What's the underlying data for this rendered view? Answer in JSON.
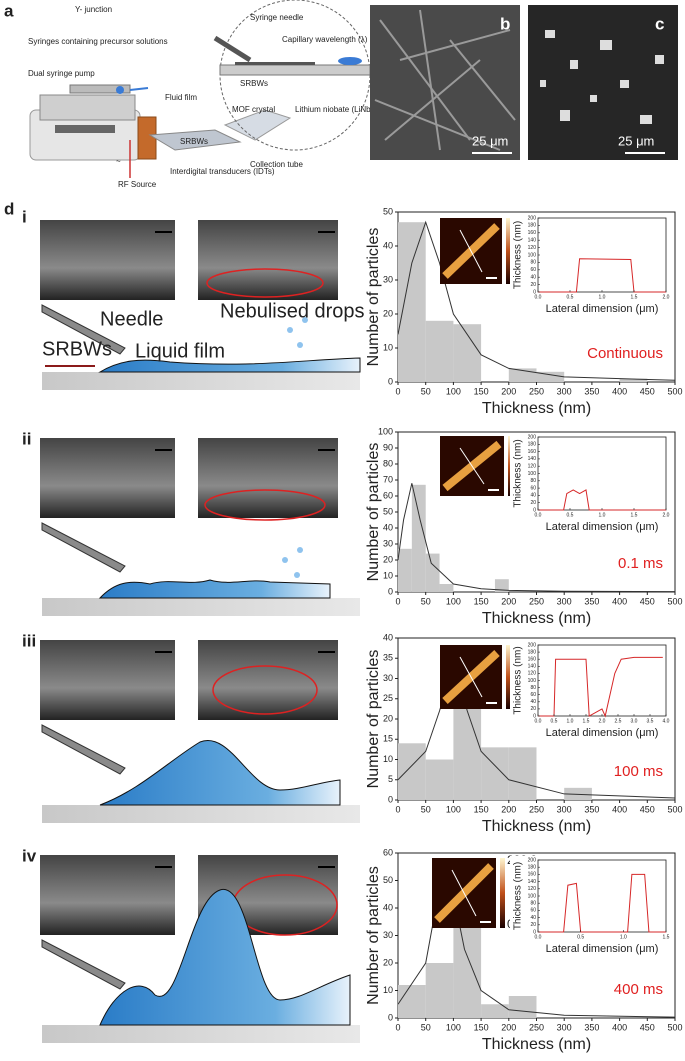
{
  "panel_a": {
    "label": "a",
    "y_junction": "Y- junction",
    "syringes": "Syringes containing precursor solutions",
    "pump": "Dual syringe pump",
    "fluid_film": "Fluid film",
    "rf_source": "RF Source",
    "rf_symbol": "~",
    "srbws": "SRBWs",
    "idts": "Interdigital transducers (IDTs)",
    "collection": "Collection tube",
    "syringe_needle": "Syringe needle",
    "capillary": "Capillary wavelength (λ)",
    "srbws_zoom": "SRBWs",
    "mof": "MOF crystal",
    "substrate": "Lithium niobate (LiNbO3)"
  },
  "panel_b": {
    "label": "b",
    "scale": "25 μm"
  },
  "panel_c": {
    "label": "c",
    "scale": "25 μm"
  },
  "panel_d": {
    "label": "d",
    "rows": [
      {
        "label": "i",
        "needle": "Needle",
        "drops": "Nebulised drops",
        "waves": "SRBWs",
        "film": "Liquid film"
      },
      {
        "label": "ii"
      },
      {
        "label": "iii"
      },
      {
        "label": "iv"
      }
    ]
  },
  "chart_data": [
    {
      "type": "histogram",
      "xlabel": "Thickness (nm)",
      "ylabel": "Number of particles",
      "annotation": "Continuous",
      "colorbar": {
        "max": "100.0",
        "min": "0.0"
      },
      "bins": [
        0,
        50,
        100,
        150,
        200,
        250,
        300,
        350,
        400,
        450,
        500
      ],
      "values": [
        47,
        18,
        17,
        0,
        4,
        3,
        0,
        0,
        1,
        0
      ],
      "color": "#c8c8c8",
      "xlim": [
        0,
        500
      ],
      "ylim": [
        0,
        50
      ],
      "xticks": [
        0,
        50,
        100,
        150,
        200,
        250,
        300,
        350,
        400,
        450,
        500
      ],
      "yticks": [
        0,
        10,
        20,
        30,
        40,
        50
      ],
      "fit": {
        "x": [
          0,
          25,
          50,
          75,
          100,
          150,
          200,
          300,
          500
        ],
        "values": [
          14,
          35,
          47,
          35,
          20,
          8,
          4,
          1.5,
          0.5
        ],
        "color": "#333333"
      }
    },
    {
      "type": "histogram",
      "xlabel": "Thickness (nm)",
      "ylabel": "Number of particles",
      "annotation": "0.1 ms",
      "colorbar": {
        "max": "100.0",
        "min": "0.0"
      },
      "bins": [
        0,
        25,
        50,
        75,
        100,
        125,
        150,
        175,
        200,
        225,
        250,
        275,
        300,
        325,
        350,
        375,
        400,
        425,
        450,
        475,
        500
      ],
      "values": [
        27,
        67,
        24,
        5,
        0,
        0,
        0,
        8,
        0,
        0,
        0,
        0,
        0,
        0,
        0,
        0,
        0,
        0,
        0,
        0
      ],
      "color": "#c8c8c8",
      "xlim": [
        0,
        500
      ],
      "ylim": [
        0,
        100
      ],
      "xticks": [
        0,
        50,
        100,
        150,
        200,
        250,
        300,
        350,
        400,
        450,
        500
      ],
      "yticks": [
        0,
        10,
        20,
        30,
        40,
        50,
        60,
        70,
        80,
        90,
        100
      ],
      "fit": {
        "x": [
          0,
          10,
          25,
          40,
          60,
          100,
          150,
          200,
          300,
          500
        ],
        "values": [
          20,
          45,
          68,
          45,
          18,
          5,
          2,
          1,
          0.5,
          0.2
        ],
        "color": "#333333"
      }
    },
    {
      "type": "histogram",
      "xlabel": "Thickness (nm)",
      "ylabel": "Number of particles",
      "annotation": "100 ms",
      "colorbar": {
        "max": "200.0",
        "min": "0.0"
      },
      "bins": [
        0,
        50,
        100,
        150,
        200,
        250,
        300,
        350,
        400,
        450,
        500
      ],
      "values": [
        14,
        10,
        35,
        13,
        13,
        0,
        3,
        0,
        0,
        0
      ],
      "color": "#c8c8c8",
      "xlim": [
        0,
        500
      ],
      "ylim": [
        0,
        40
      ],
      "xticks": [
        0,
        50,
        100,
        150,
        200,
        250,
        300,
        350,
        400,
        450,
        500
      ],
      "yticks": [
        0,
        5,
        10,
        15,
        20,
        25,
        30,
        35,
        40
      ],
      "fit": {
        "x": [
          0,
          50,
          75,
          100,
          125,
          150,
          200,
          300,
          500
        ],
        "values": [
          5,
          12,
          22,
          34,
          22,
          12,
          5,
          1.5,
          0.5
        ],
        "color": "#333333"
      }
    },
    {
      "type": "histogram",
      "xlabel": "Thickness (nm)",
      "ylabel": "Number of particles",
      "annotation": "400 ms",
      "colorbar": {
        "max": "200.0",
        "min": "0.0"
      },
      "bins": [
        0,
        50,
        100,
        150,
        200,
        250,
        300,
        350,
        400,
        450,
        500
      ],
      "values": [
        12,
        20,
        55,
        5,
        8,
        0,
        0,
        0,
        0,
        0
      ],
      "color": "#c8c8c8",
      "xlim": [
        0,
        500
      ],
      "ylim": [
        0,
        60
      ],
      "xticks": [
        0,
        50,
        100,
        150,
        200,
        250,
        300,
        350,
        400,
        450,
        500
      ],
      "yticks": [
        0,
        10,
        20,
        30,
        40,
        50,
        60
      ],
      "fit": {
        "x": [
          0,
          50,
          70,
          85,
          100,
          120,
          150,
          200,
          300,
          500
        ],
        "values": [
          5,
          20,
          42,
          53,
          45,
          25,
          10,
          3,
          1,
          0.3
        ],
        "color": "#333333"
      }
    },
    {
      "type": "line",
      "xlabel": "Lateral dimension (μm)",
      "ylabel": "Thickness (nm)",
      "x": [
        0,
        0.6,
        0.65,
        1.45,
        1.5,
        2.0
      ],
      "values": [
        0,
        0,
        90,
        88,
        0,
        0
      ],
      "color": "#d62728",
      "xlim": [
        0,
        2
      ],
      "ylim": [
        0,
        200
      ],
      "xticks": [
        {
          "value": 0,
          "label": "0.0"
        },
        {
          "value": 0.5,
          "label": "0.5"
        },
        {
          "value": 1,
          "label": "1.0"
        },
        {
          "value": 1.5,
          "label": "1.5"
        },
        {
          "value": 2,
          "label": "2.0"
        }
      ],
      "yticks": [
        0,
        20,
        40,
        60,
        80,
        100,
        120,
        140,
        160,
        180,
        200
      ]
    },
    {
      "type": "line",
      "xlabel": "Lateral dimension (μm)",
      "ylabel": "Thickness (nm)",
      "x": [
        0,
        0.4,
        0.45,
        0.55,
        0.65,
        0.75,
        0.8,
        2.0
      ],
      "values": [
        0,
        0,
        45,
        55,
        45,
        55,
        0,
        0
      ],
      "color": "#d62728",
      "xlim": [
        0,
        2
      ],
      "ylim": [
        0,
        200
      ],
      "xticks": [
        {
          "value": 0,
          "label": "0.0"
        },
        {
          "value": 0.5,
          "label": "0.5"
        },
        {
          "value": 1,
          "label": "1.0"
        },
        {
          "value": 1.5,
          "label": "1.5"
        },
        {
          "value": 2,
          "label": "2.0"
        }
      ],
      "yticks": [
        0,
        20,
        40,
        60,
        80,
        100,
        120,
        140,
        160,
        180,
        200
      ]
    },
    {
      "type": "line",
      "xlabel": "Lateral dimension (μm)",
      "ylabel": "Thickness (nm)",
      "x": [
        0,
        0.5,
        0.55,
        1.5,
        1.6,
        2.0,
        2.1,
        2.4,
        2.6,
        3.0,
        3.9
      ],
      "values": [
        0,
        0,
        160,
        160,
        0,
        20,
        0,
        120,
        160,
        165,
        165
      ],
      "color": "#d62728",
      "xlim": [
        0,
        4
      ],
      "ylim": [
        0,
        200
      ],
      "xticks": [
        {
          "value": 0,
          "label": "0.0"
        },
        {
          "value": 0.5,
          "label": "0.5"
        },
        {
          "value": 1,
          "label": "1.0"
        },
        {
          "value": 1.5,
          "label": "1.5"
        },
        {
          "value": 2,
          "label": "2.0"
        },
        {
          "value": 2.5,
          "label": "2.5"
        },
        {
          "value": 3,
          "label": "3.0"
        },
        {
          "value": 3.5,
          "label": "3.5"
        },
        {
          "value": 4,
          "label": "4.0"
        }
      ],
      "yticks": [
        0,
        20,
        40,
        60,
        80,
        100,
        120,
        140,
        160,
        180,
        200
      ]
    },
    {
      "type": "line",
      "xlabel": "Lateral dimension (μm)",
      "ylabel": "Thickness (nm)",
      "x": [
        0,
        0.3,
        0.35,
        0.45,
        0.5,
        0.55,
        1.05,
        1.1,
        1.25,
        1.3,
        1.5
      ],
      "values": [
        0,
        0,
        130,
        135,
        0,
        0,
        0,
        160,
        160,
        0,
        0
      ],
      "color": "#d62728",
      "xlim": [
        0,
        1.5
      ],
      "ylim": [
        0,
        200
      ],
      "xticks": [
        {
          "value": 0,
          "label": "0.0"
        },
        {
          "value": 0.5,
          "label": "0.5"
        },
        {
          "value": 1,
          "label": "1.0"
        },
        {
          "value": 1.5,
          "label": "1.5"
        }
      ],
      "yticks": [
        0,
        20,
        40,
        60,
        80,
        100,
        120,
        140,
        160,
        180,
        200
      ]
    }
  ]
}
